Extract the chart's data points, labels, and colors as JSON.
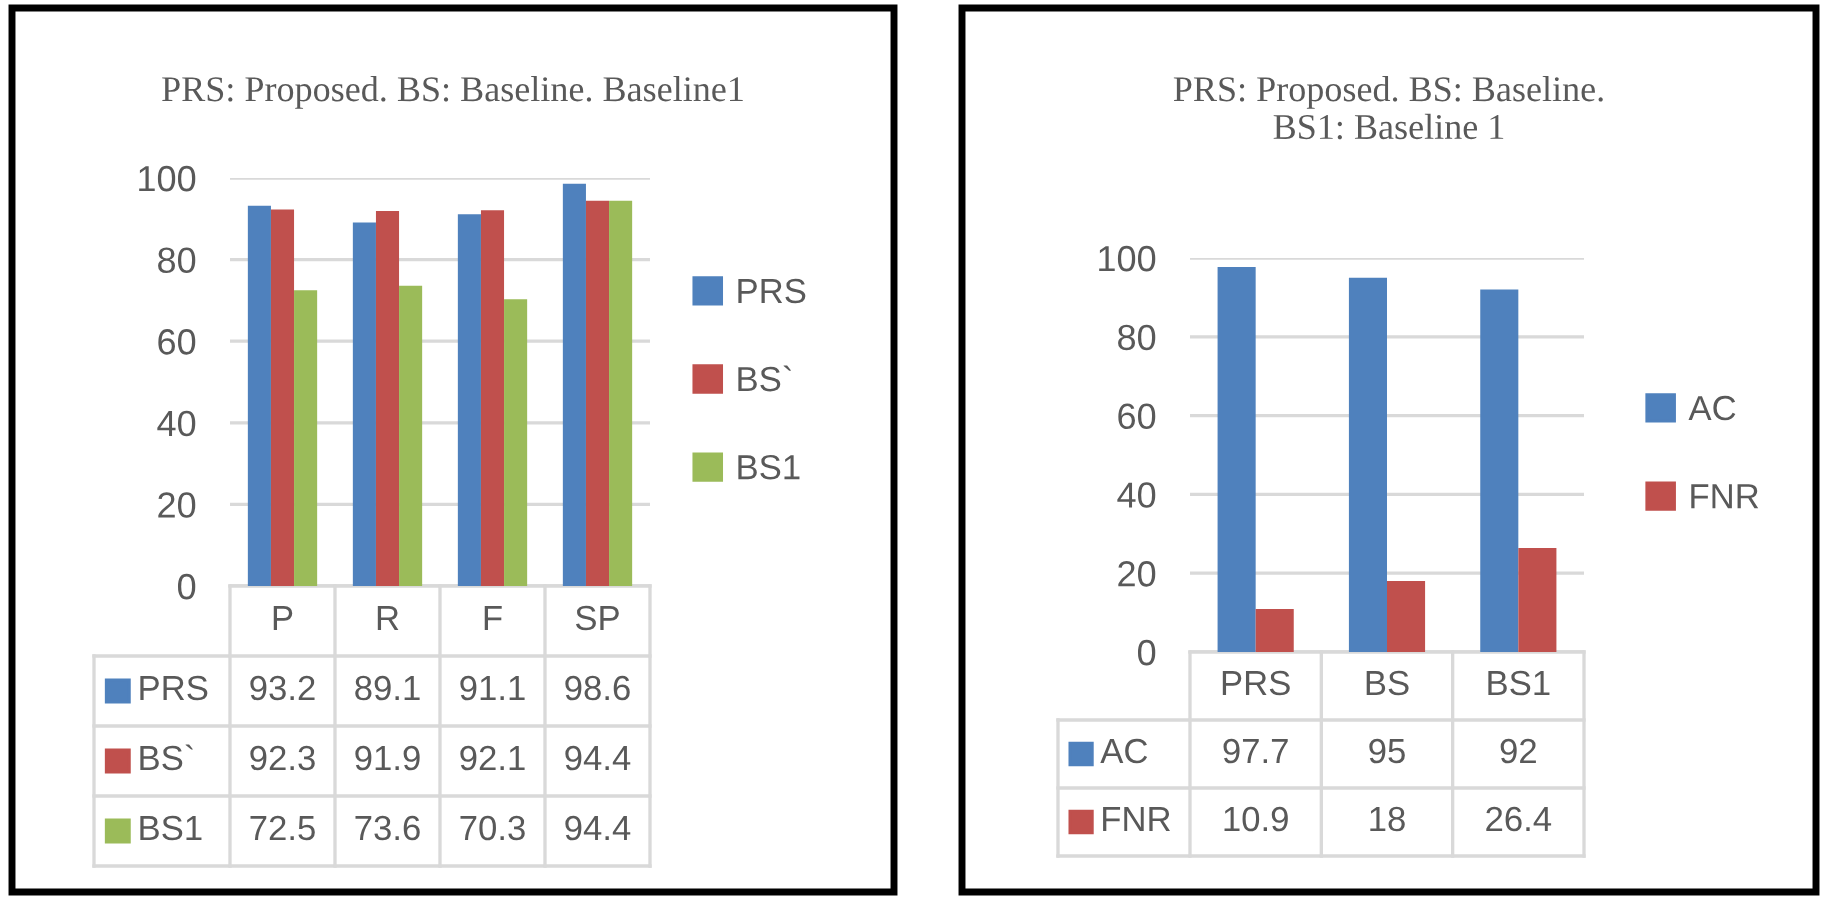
{
  "chart_data": [
    {
      "type": "bar",
      "title": "PRS: Proposed. BS: Baseline. Baseline1",
      "categories": [
        "P",
        "R",
        "F",
        "SP"
      ],
      "series": [
        {
          "name": "PRS",
          "color": "#4f81bd",
          "values": [
            93.2,
            89.1,
            91.1,
            98.6
          ]
        },
        {
          "name": "BS`",
          "color": "#c0504d",
          "values": [
            92.3,
            91.9,
            92.1,
            94.4
          ]
        },
        {
          "name": "BS1",
          "color": "#9bbb59",
          "values": [
            72.5,
            73.6,
            70.3,
            94.4
          ]
        }
      ],
      "ylim": [
        0,
        100
      ],
      "yticks": [
        0,
        20,
        40,
        60,
        80,
        100
      ],
      "grid": "y",
      "legend": "right",
      "data_labels": true
    },
    {
      "type": "bar",
      "title": "PRS: Proposed. BS: Baseline.\nBS1: Baseline 1",
      "categories": [
        "PRS",
        "BS",
        "BS1"
      ],
      "series": [
        {
          "name": "AC",
          "color": "#4f81bd",
          "values": [
            97.7,
            95,
            92
          ]
        },
        {
          "name": "FNR",
          "color": "#c0504d",
          "values": [
            10.9,
            18,
            26.4
          ]
        }
      ],
      "ylim": [
        0,
        100
      ],
      "yticks": [
        0,
        20,
        40,
        60,
        80,
        100
      ],
      "grid": "y",
      "legend": "right",
      "data_labels": true
    }
  ]
}
